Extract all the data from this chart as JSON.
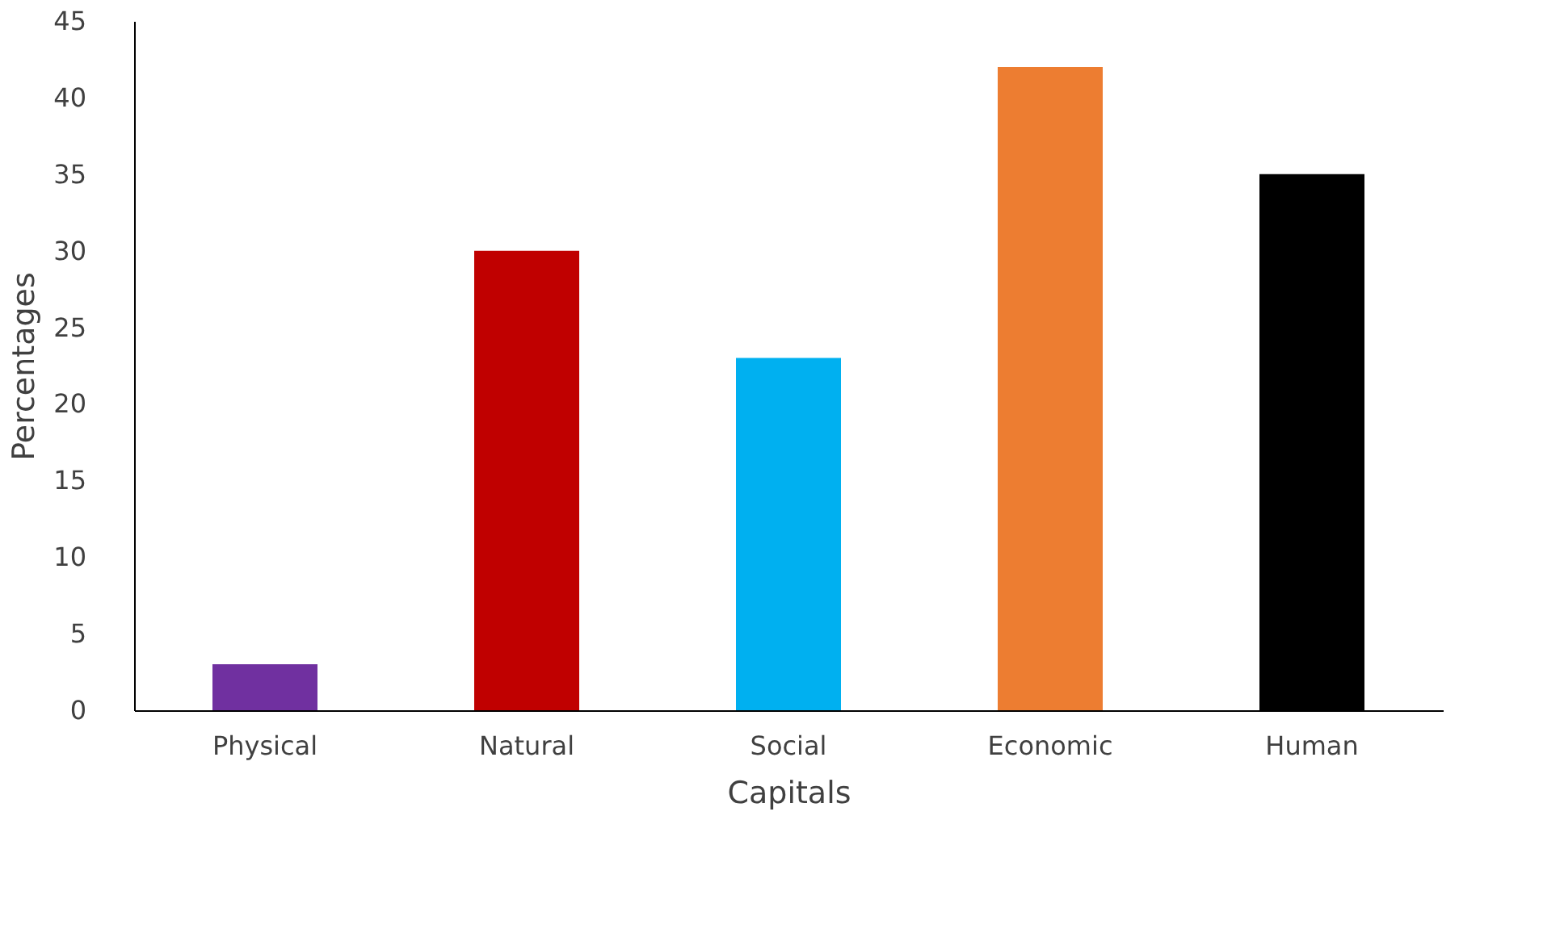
{
  "chart_data": {
    "type": "bar",
    "xlabel": "Capitals",
    "ylabel": "Percentages",
    "categories": [
      "Physical",
      "Natural",
      "Social",
      "Economic",
      "Human"
    ],
    "values": [
      3,
      30,
      23,
      42,
      35
    ],
    "colors": [
      "#7030a0",
      "#c00000",
      "#00b0f0",
      "#ed7d31",
      "#000000"
    ],
    "ylim": [
      0,
      45
    ],
    "yticks": [
      0,
      5,
      10,
      15,
      20,
      25,
      30,
      35,
      40,
      45
    ],
    "grid": false,
    "legend": false
  }
}
